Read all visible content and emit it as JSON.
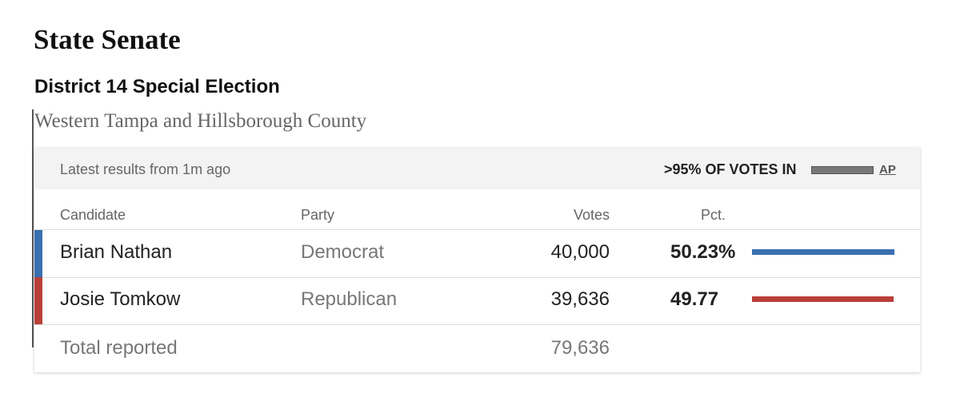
{
  "header": {
    "title": "State Senate",
    "subtitle": "District 14 Special Election",
    "description": "Western Tampa and Hillsborough County"
  },
  "status": {
    "updated": "Latest results from 1m ago",
    "reporting": ">95% OF VOTES IN",
    "source": "AP"
  },
  "table": {
    "columns": [
      "Candidate",
      "Party",
      "Votes",
      "Pct."
    ],
    "rows": [
      {
        "candidate": "Brian Nathan",
        "party": "Democrat",
        "votes": "40,000",
        "pct": 50.23,
        "pct_label": "50.23%",
        "color": "#3a6fb0"
      },
      {
        "candidate": "Josie Tomkow",
        "party": "Republican",
        "votes": "39,636",
        "pct": 49.77,
        "pct_label": "49.77",
        "color": "#b9403a"
      }
    ],
    "total": {
      "label": "Total reported",
      "votes": "79,636"
    }
  }
}
